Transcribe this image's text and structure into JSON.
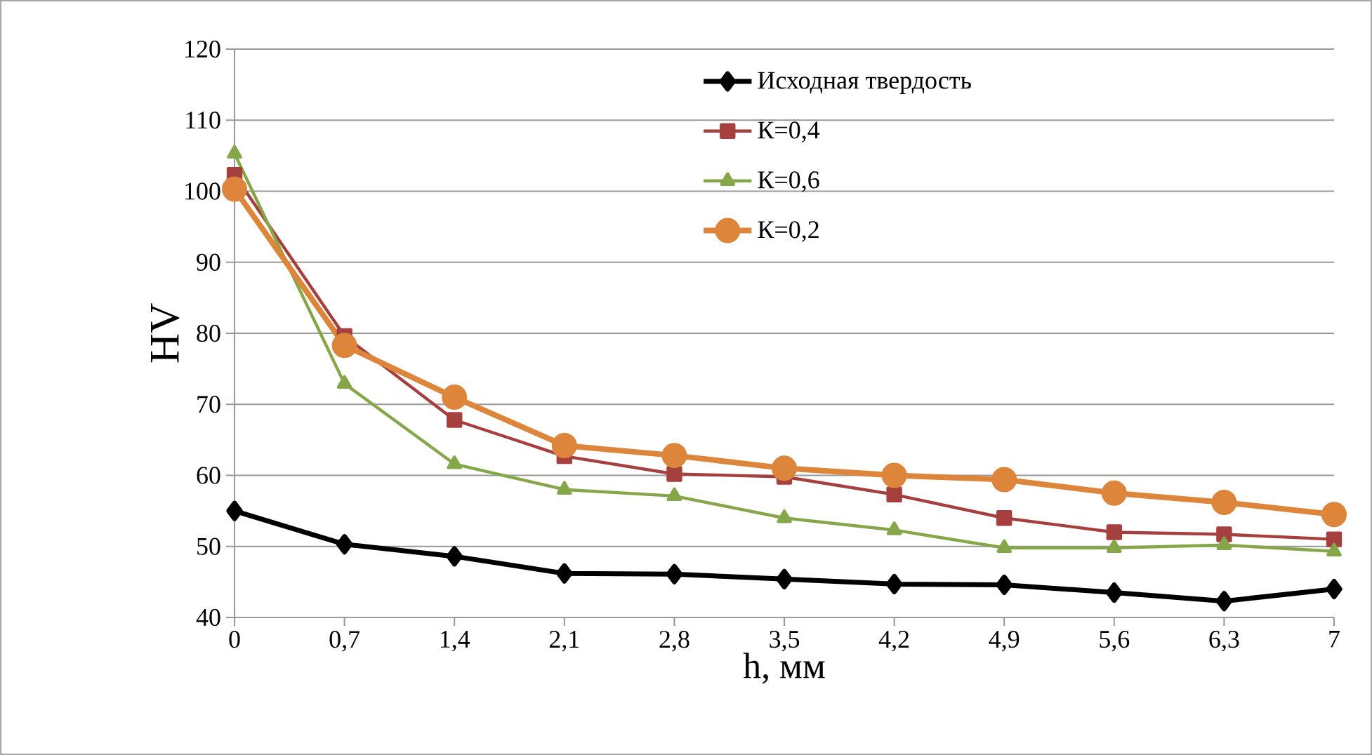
{
  "chart_data": {
    "type": "line",
    "xlabel": "h, мм",
    "ylabel": "HV",
    "categories": [
      "0",
      "0,7",
      "1,4",
      "2,1",
      "2,8",
      "3,5",
      "4,2",
      "4,9",
      "5,6",
      "6,3",
      "7"
    ],
    "ylim": [
      40,
      120
    ],
    "yticks": [
      40,
      50,
      60,
      70,
      80,
      90,
      100,
      110,
      120
    ],
    "grid": "y",
    "legend": "top right",
    "series": [
      {
        "name": "Исходная твердость",
        "color": "#000000",
        "marker": "diamond",
        "values": [
          55,
          50.3,
          48.6,
          46.2,
          46.1,
          45.4,
          44.7,
          44.6,
          43.5,
          42.3,
          44.0
        ]
      },
      {
        "name": "К=0,4",
        "color": "#a5403f",
        "marker": "square",
        "values": [
          102.3,
          79.6,
          67.8,
          62.7,
          60.2,
          59.8,
          57.3,
          54,
          52,
          51.7,
          51
        ]
      },
      {
        "name": "К=0,6",
        "color": "#86a64a",
        "marker": "triangle",
        "values": [
          105.3,
          72.9,
          61.6,
          58,
          57.1,
          54,
          52.3,
          49.8,
          49.8,
          50.2,
          49.3
        ]
      },
      {
        "name": "К=0,2",
        "color": "#dd853a",
        "marker": "circle",
        "values": [
          100.3,
          78.3,
          71,
          64.2,
          62.8,
          61,
          60,
          59.4,
          57.5,
          56.2,
          54.5
        ]
      }
    ]
  }
}
